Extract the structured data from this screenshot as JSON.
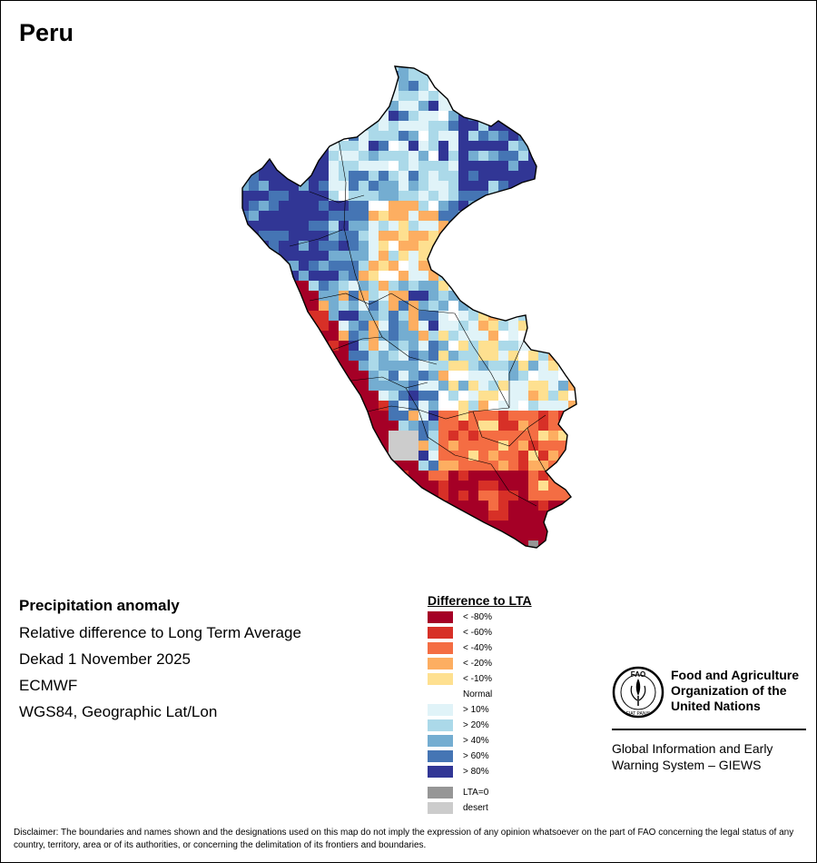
{
  "title": "Peru",
  "info": {
    "heading": "Precipitation anomaly",
    "line1": "Relative difference to Long Term Average",
    "line2": "Dekad 1 November 2025",
    "line3": "ECMWF",
    "line4": "WGS84, Geographic Lat/Lon"
  },
  "legend": {
    "title": "Difference to LTA",
    "items": [
      {
        "label": "< -80%",
        "color": "#a50026"
      },
      {
        "label": "< -60%",
        "color": "#d73027"
      },
      {
        "label": "< -40%",
        "color": "#f46d43"
      },
      {
        "label": "< -20%",
        "color": "#fdae61"
      },
      {
        "label": "< -10%",
        "color": "#fee090"
      },
      {
        "label": "Normal",
        "color": "#ffffff"
      },
      {
        "label": "> 10%",
        "color": "#e0f3f8"
      },
      {
        "label": "> 20%",
        "color": "#abd9e9"
      },
      {
        "label": "> 40%",
        "color": "#74add1"
      },
      {
        "label": "> 60%",
        "color": "#4575b4"
      },
      {
        "label": "> 80%",
        "color": "#313695"
      }
    ],
    "extra": [
      {
        "label": "LTA=0",
        "color": "#969696"
      },
      {
        "label": "desert",
        "color": "#cccccc"
      }
    ]
  },
  "fao": {
    "emblem_text": "FAO",
    "emblem_motto": "FIAT PANIS",
    "name_line1": "Food and Agriculture",
    "name_line2": "Organization of the",
    "name_line3": "United Nations",
    "giews_line1": "Global Information and Early",
    "giews_line2": "Warning System – GIEWS"
  },
  "disclaimer": "Disclaimer: The boundaries and names shown and the designations used on this map do not imply the expression of any opinion whatsoever on the part of FAO concerning the legal status of any country, territory, area or of its authorities, or concerning the delimitation of its frontiers and boundaries."
}
